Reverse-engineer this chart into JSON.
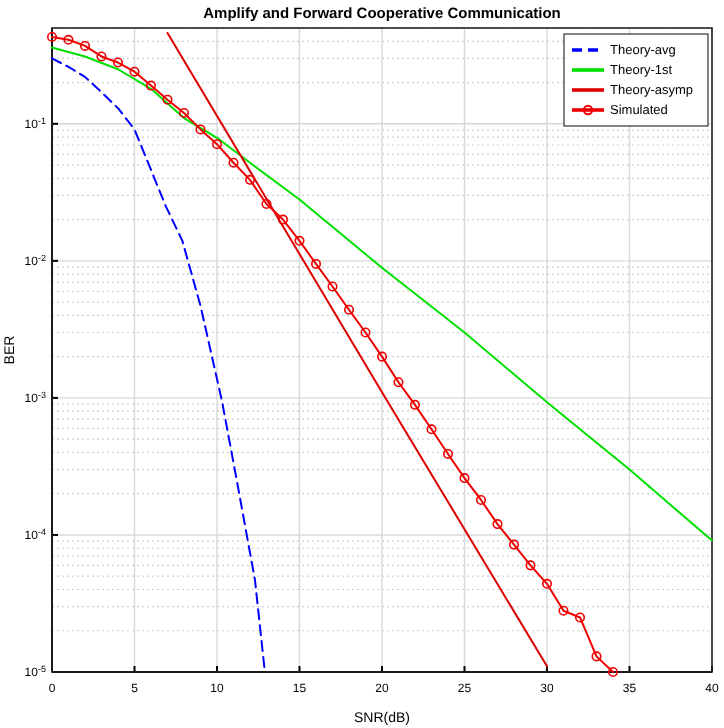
{
  "chart_data": {
    "type": "line",
    "title": "Amplify and Forward Cooperative Communication",
    "xlabel": "SNR(dB)",
    "ylabel": "BER",
    "log": "y",
    "grid": true,
    "legend": "top right",
    "xlim": [
      0,
      40
    ],
    "xticks": [
      0,
      5,
      10,
      15,
      20,
      25,
      30,
      35,
      40
    ],
    "ylim": [
      1e-05,
      0.5
    ],
    "yticks": [
      {
        "value": 1e-05,
        "label": "10$^{-5}$"
      },
      {
        "value": 0.0001,
        "label": "10$^{-4}$"
      },
      {
        "value": 0.001,
        "label": "10$^{-3}$"
      },
      {
        "value": 0.01,
        "label": "10$^{-2}$"
      },
      {
        "value": 0.1,
        "label": "10$^{-1}$"
      }
    ],
    "series": [
      {
        "name": "Theory-avg",
        "color": "#0000ff",
        "line_style": "dashed",
        "marker": "none",
        "x": [
          0,
          1,
          2,
          3,
          4,
          5,
          6.9,
          7.9,
          9,
          10.3,
          11.2,
          12.3,
          12.9
        ],
        "values": [
          0.3,
          0.26,
          0.22,
          0.17,
          0.13,
          0.091,
          0.025,
          0.014,
          0.0047,
          0.00095,
          0.00025,
          4.7e-05,
          1e-05
        ]
      },
      {
        "name": "Theory-1st",
        "color": "#00e000",
        "line_style": "solid",
        "marker": "none",
        "x": [
          0,
          2,
          4,
          6,
          8,
          10,
          12,
          15,
          20,
          25,
          30,
          35,
          40
        ],
        "values": [
          0.36,
          0.31,
          0.25,
          0.18,
          0.11,
          0.079,
          0.052,
          0.028,
          0.0089,
          0.003,
          0.00093,
          0.0003,
          9.1e-05
        ]
      },
      {
        "name": "Theory-asymp",
        "color": "#dd0000",
        "line_style": "solid",
        "marker": "none",
        "x": [
          7,
          20,
          30
        ],
        "values": [
          0.46,
          0.0011,
          1.1e-05
        ]
      },
      {
        "name": "Simulated",
        "color": "#ee0000",
        "line_style": "solid",
        "marker": "circle",
        "x": [
          0,
          1,
          2,
          3,
          4,
          5,
          6,
          7,
          8,
          9,
          10,
          11,
          12,
          13,
          14,
          15,
          16,
          17,
          18,
          19,
          20,
          21,
          22,
          23,
          24,
          25,
          26,
          27,
          28,
          29,
          30,
          31,
          32,
          33,
          34
        ],
        "values": [
          0.43,
          0.41,
          0.37,
          0.31,
          0.28,
          0.24,
          0.19,
          0.15,
          0.12,
          0.091,
          0.071,
          0.052,
          0.039,
          0.026,
          0.02,
          0.014,
          0.0095,
          0.0065,
          0.0044,
          0.003,
          0.002,
          0.0013,
          0.00089,
          0.00059,
          0.00039,
          0.00026,
          0.00018,
          0.00012,
          8.5e-05,
          6e-05,
          4.4e-05,
          2.8e-05,
          2.5e-05,
          1.3e-05,
          1e-05
        ]
      }
    ]
  }
}
